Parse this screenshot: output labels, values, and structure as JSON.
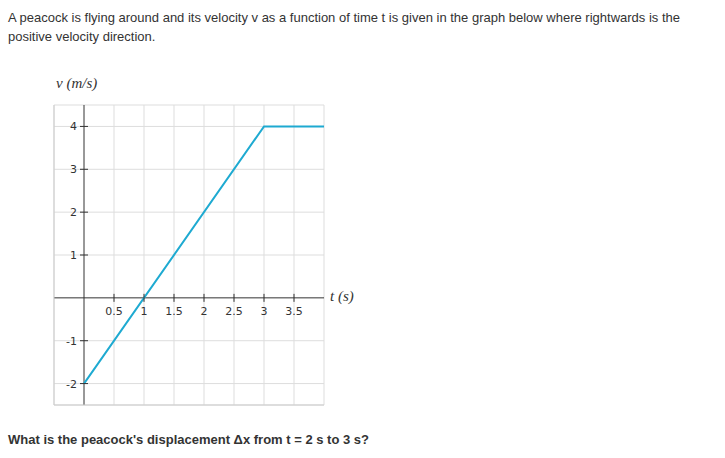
{
  "text": {
    "intro": "A peacock is flying around and its velocity v as a function of time t is given in the graph below where rightwards is the positive velocity direction.",
    "question": "What is the peacock's displacement Δx from t = 2 s to 3 s?"
  },
  "chart_data": {
    "type": "line",
    "xlabel": "t (s)",
    "ylabel": "v (m/s)",
    "x": [
      0,
      3,
      4
    ],
    "values": [
      -2,
      4,
      4
    ],
    "color": "#1eaad1",
    "xlim": [
      -0.5,
      4
    ],
    "ylim": [
      -2.5,
      4.5
    ],
    "xticks": [
      0.5,
      1,
      1.5,
      2,
      2.5,
      3,
      3.5
    ],
    "yticks": [
      -2,
      -1,
      1,
      2,
      3,
      4
    ],
    "grid": true
  }
}
